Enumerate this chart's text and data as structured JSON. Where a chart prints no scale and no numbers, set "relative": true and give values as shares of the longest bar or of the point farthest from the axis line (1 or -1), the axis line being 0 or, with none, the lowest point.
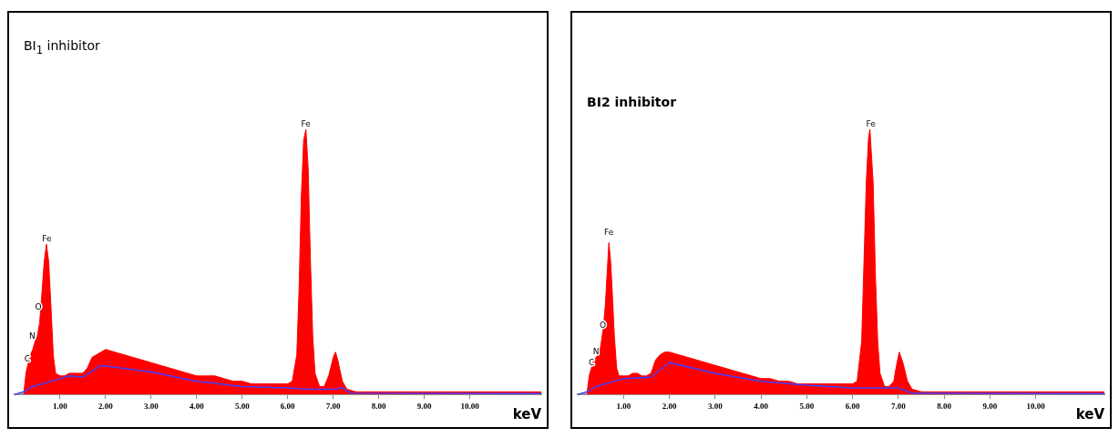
{
  "chart_data": [
    {
      "type": "area",
      "title": "BI$_{1}$ inhibitor",
      "xlabel": "keV",
      "relative": true,
      "xlim": [
        0,
        11.57
      ],
      "xticks": [
        {
          "value": 1,
          "label": "1.00"
        },
        {
          "value": 2,
          "label": "2.00"
        },
        {
          "value": 3,
          "label": "3.00"
        },
        {
          "value": 4,
          "label": "4.00"
        },
        {
          "value": 5,
          "label": "5.00"
        },
        {
          "value": 6,
          "label": "6.00"
        },
        {
          "value": 7,
          "label": "7.00"
        },
        {
          "value": 8,
          "label": "8.00"
        },
        {
          "value": 9,
          "label": "9.00"
        },
        {
          "value": 10,
          "label": "10.00"
        }
      ],
      "tick_labels": "x",
      "legend": false,
      "marker": "none",
      "series": [
        {
          "color": "#ff0000",
          "x": [
            0.2,
            0.25,
            0.3,
            0.35,
            0.4,
            0.45,
            0.5,
            0.55,
            0.6,
            0.65,
            0.7,
            0.75,
            0.8,
            0.85,
            0.9,
            1.0,
            1.1,
            1.2,
            1.3,
            1.4,
            1.5,
            1.6,
            1.7,
            1.8,
            1.9,
            2.0,
            2.2,
            2.4,
            2.6,
            2.8,
            3.0,
            3.2,
            3.4,
            3.6,
            3.8,
            4.0,
            4.2,
            4.4,
            4.6,
            4.8,
            5.0,
            5.2,
            5.4,
            5.6,
            5.8,
            6.0,
            6.1,
            6.2,
            6.25,
            6.3,
            6.35,
            6.4,
            6.45,
            6.5,
            6.55,
            6.6,
            6.7,
            6.8,
            6.9,
            7.0,
            7.05,
            7.1,
            7.2,
            7.3,
            7.5,
            8.0,
            9.0,
            10.0,
            11.0,
            11.57
          ],
          "values": [
            0,
            0.08,
            0.12,
            0.15,
            0.17,
            0.2,
            0.22,
            0.27,
            0.38,
            0.5,
            0.567,
            0.5,
            0.33,
            0.15,
            0.08,
            0.07,
            0.07,
            0.08,
            0.08,
            0.08,
            0.08,
            0.1,
            0.14,
            0.15,
            0.16,
            0.17,
            0.16,
            0.15,
            0.14,
            0.13,
            0.12,
            0.11,
            0.1,
            0.09,
            0.08,
            0.07,
            0.07,
            0.07,
            0.06,
            0.05,
            0.05,
            0.04,
            0.04,
            0.04,
            0.04,
            0.04,
            0.05,
            0.15,
            0.4,
            0.75,
            0.96,
            1.0,
            0.85,
            0.5,
            0.22,
            0.08,
            0.03,
            0.03,
            0.07,
            0.14,
            0.16,
            0.13,
            0.05,
            0.02,
            0.01,
            0.01,
            0.01,
            0.01,
            0.01,
            0.01
          ]
        },
        {
          "type": "line",
          "color": "#4040ff",
          "x": [
            0,
            0.2,
            0.4,
            0.8,
            1.2,
            1.5,
            1.9,
            3.0,
            4.0,
            5.0,
            6.0,
            6.5,
            7.0,
            7.2,
            7.4,
            11.57
          ],
          "values": [
            0,
            0.01,
            0.03,
            0.05,
            0.07,
            0.065,
            0.11,
            0.085,
            0.05,
            0.03,
            0.025,
            0.02,
            0.02,
            0.025,
            0.005,
            0.003
          ]
        }
      ],
      "annotations": [
        {
          "text": "Fe",
          "x": 6.4,
          "y": 1.0
        },
        {
          "text": "Fe",
          "x": 0.71,
          "y": 0.567
        },
        {
          "text": "O",
          "x": 0.52,
          "y": 0.31
        },
        {
          "text": "N",
          "x": 0.39,
          "y": 0.2
        },
        {
          "text": "C",
          "x": 0.28,
          "y": 0.115
        }
      ]
    },
    {
      "type": "area",
      "title": "BI2 inhibitor",
      "xlabel": "keV",
      "relative": true,
      "xlim": [
        0,
        11.5
      ],
      "xticks": [
        {
          "value": 1,
          "label": "1.00"
        },
        {
          "value": 2,
          "label": "2.00"
        },
        {
          "value": 3,
          "label": "3.00"
        },
        {
          "value": 4,
          "label": "4.00"
        },
        {
          "value": 5,
          "label": "5.00"
        },
        {
          "value": 6,
          "label": "6.00"
        },
        {
          "value": 7,
          "label": "7.00"
        },
        {
          "value": 8,
          "label": "8.00"
        },
        {
          "value": 9,
          "label": "9.00"
        },
        {
          "value": 10,
          "label": "10.00"
        }
      ],
      "tick_labels": "x",
      "legend": false,
      "marker": "none",
      "series": [
        {
          "color": "#ff0000",
          "x": [
            0.2,
            0.25,
            0.3,
            0.35,
            0.4,
            0.45,
            0.5,
            0.55,
            0.6,
            0.65,
            0.68,
            0.72,
            0.75,
            0.8,
            0.85,
            0.9,
            1.0,
            1.1,
            1.2,
            1.3,
            1.4,
            1.5,
            1.6,
            1.7,
            1.8,
            1.9,
            2.0,
            2.2,
            2.4,
            2.6,
            2.8,
            3.0,
            3.2,
            3.4,
            3.6,
            3.8,
            4.0,
            4.2,
            4.4,
            4.6,
            4.8,
            5.0,
            5.2,
            5.4,
            5.6,
            5.8,
            6.0,
            6.1,
            6.2,
            6.25,
            6.3,
            6.35,
            6.38,
            6.45,
            6.5,
            6.55,
            6.6,
            6.7,
            6.8,
            6.9,
            6.95,
            7.02,
            7.1,
            7.2,
            7.3,
            7.5,
            8.0,
            9.0,
            10.0,
            11.0,
            11.5
          ],
          "values": [
            0,
            0.07,
            0.1,
            0.13,
            0.14,
            0.15,
            0.18,
            0.24,
            0.33,
            0.48,
            0.573,
            0.5,
            0.4,
            0.22,
            0.1,
            0.07,
            0.07,
            0.07,
            0.08,
            0.08,
            0.07,
            0.07,
            0.08,
            0.13,
            0.15,
            0.16,
            0.16,
            0.15,
            0.14,
            0.13,
            0.12,
            0.11,
            0.1,
            0.09,
            0.08,
            0.07,
            0.06,
            0.06,
            0.05,
            0.05,
            0.04,
            0.04,
            0.04,
            0.04,
            0.04,
            0.04,
            0.04,
            0.05,
            0.2,
            0.5,
            0.8,
            0.97,
            1.0,
            0.8,
            0.45,
            0.2,
            0.08,
            0.03,
            0.03,
            0.05,
            0.1,
            0.16,
            0.12,
            0.05,
            0.02,
            0.01,
            0.01,
            0.01,
            0.01,
            0.01,
            0.01
          ]
        },
        {
          "type": "line",
          "color": "#4040ff",
          "x": [
            0,
            0.2,
            0.4,
            0.8,
            1.0,
            1.6,
            2.0,
            3.0,
            4.0,
            5.0,
            6.0,
            6.5,
            7.0,
            7.3,
            11.5
          ],
          "values": [
            0,
            0.01,
            0.03,
            0.05,
            0.06,
            0.065,
            0.12,
            0.08,
            0.05,
            0.035,
            0.025,
            null,
            0.025,
            0.005,
            0.003
          ]
        }
      ],
      "annotations": [
        {
          "text": "Fe",
          "x": 6.4,
          "y": 1.0
        },
        {
          "text": "Fe",
          "x": 0.68,
          "y": 0.59
        },
        {
          "text": "O",
          "x": 0.55,
          "y": 0.24
        },
        {
          "text": "N",
          "x": 0.4,
          "y": 0.14
        },
        {
          "text": "C",
          "x": 0.3,
          "y": 0.1
        }
      ]
    }
  ]
}
